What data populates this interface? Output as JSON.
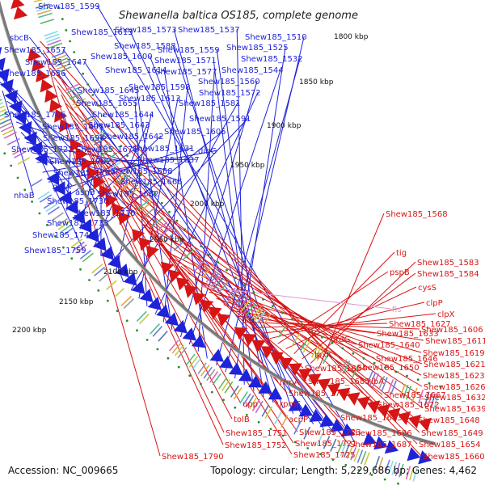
{
  "title": "Shewanella baltica OS185, complete genome",
  "footer": {
    "accession": "Accession: NC_009665",
    "topology": "Topology: circular; Length: 5,229,686 bp; Genes: 4,462"
  },
  "colors": {
    "forward": "#1f23d8",
    "reverse": "#d71515",
    "backbone": "#7a7a7a",
    "tick": "#2a8a2a",
    "pink": "#e29ad6"
  },
  "ticks": [
    "1800 kbp",
    "1850 kbp",
    "1900 kbp",
    "1950 kbp",
    "2000 kbp",
    "2050 kbp",
    "2100 kbp",
    "2150 kbp",
    "2200 kbp"
  ],
  "labels_forward": [
    "Shew185_1599",
    "sbcB",
    "Shew185_1657",
    "Shew185_1647",
    "Shew185_1656",
    "Shew185_1615",
    "Shew185_1588",
    "Shew185_1600",
    "Shew185_1573",
    "Shew185_1559",
    "Shew185_1571",
    "Shew185_1537",
    "Shew185_1525",
    "Shew185_1510",
    "Shew185_1532",
    "Shew185_1614",
    "Shew185_1577",
    "Shew185_1544",
    "Shew185_1560",
    "Shew185_1645",
    "Shew185_1598",
    "Shew185_1572",
    "Shew185_1655",
    "Shew185_1613",
    "Shew185_1581",
    "Shew185_1706",
    "Shew185_1644",
    "Shew185_1591",
    "Shew185_1695",
    "Shew185_1643",
    "Shew185_1605",
    "Shew185_1694",
    "Shew185_1642",
    "Shew185_1722",
    "Shew185_1671",
    "Shew185_1631",
    "dinG",
    "Shew185_1702",
    "Shew185_1637",
    "Shew185_1707",
    "Shew185_1658",
    "grxA",
    "Shew185_1666",
    "asnB",
    "Shew185_1682",
    "nhaB",
    "Shew185_1730",
    "Shew185_1710",
    "Shew185_1733",
    "Shew185_1748",
    "Shew185_1759"
  ],
  "labels_reverse": [
    "Shew185_1568",
    "Shew185_1583",
    "Shew185_1584",
    "tig",
    "cysS",
    "pspB",
    "clpP",
    "clpX",
    "Shew185_1627",
    "Shew185_1606",
    "Shew185_1633",
    "Shew185_1611",
    "nrdG",
    "Shew185_1640",
    "Shew185_1619",
    "Shew185_1646",
    "Shew185_1621",
    "lpxK",
    "Shew185_1684",
    "Shew185_1650",
    "Shew185_1623",
    "rrmA",
    "Shew185_1685",
    "ribA",
    "Shew185_1626",
    "Shew185_1703",
    "Shew185_1667",
    "Shew185_1632",
    "upp",
    "rpmF",
    "Shew185_1672",
    "Shew185_1639",
    "Shew185_1683",
    "Shew185_1648",
    "tolB",
    "acpP",
    "Shew185_1751",
    "Shew185_1723",
    "Shew185_1686",
    "Shew185_1649",
    "Shew185_1752",
    "Shew185_1721",
    "Shew185_1687",
    "Shew185_1654",
    "Shew185_1790",
    "Shew185_1725",
    "Shew185_1660"
  ],
  "labels_pink": [
    "fis"
  ]
}
